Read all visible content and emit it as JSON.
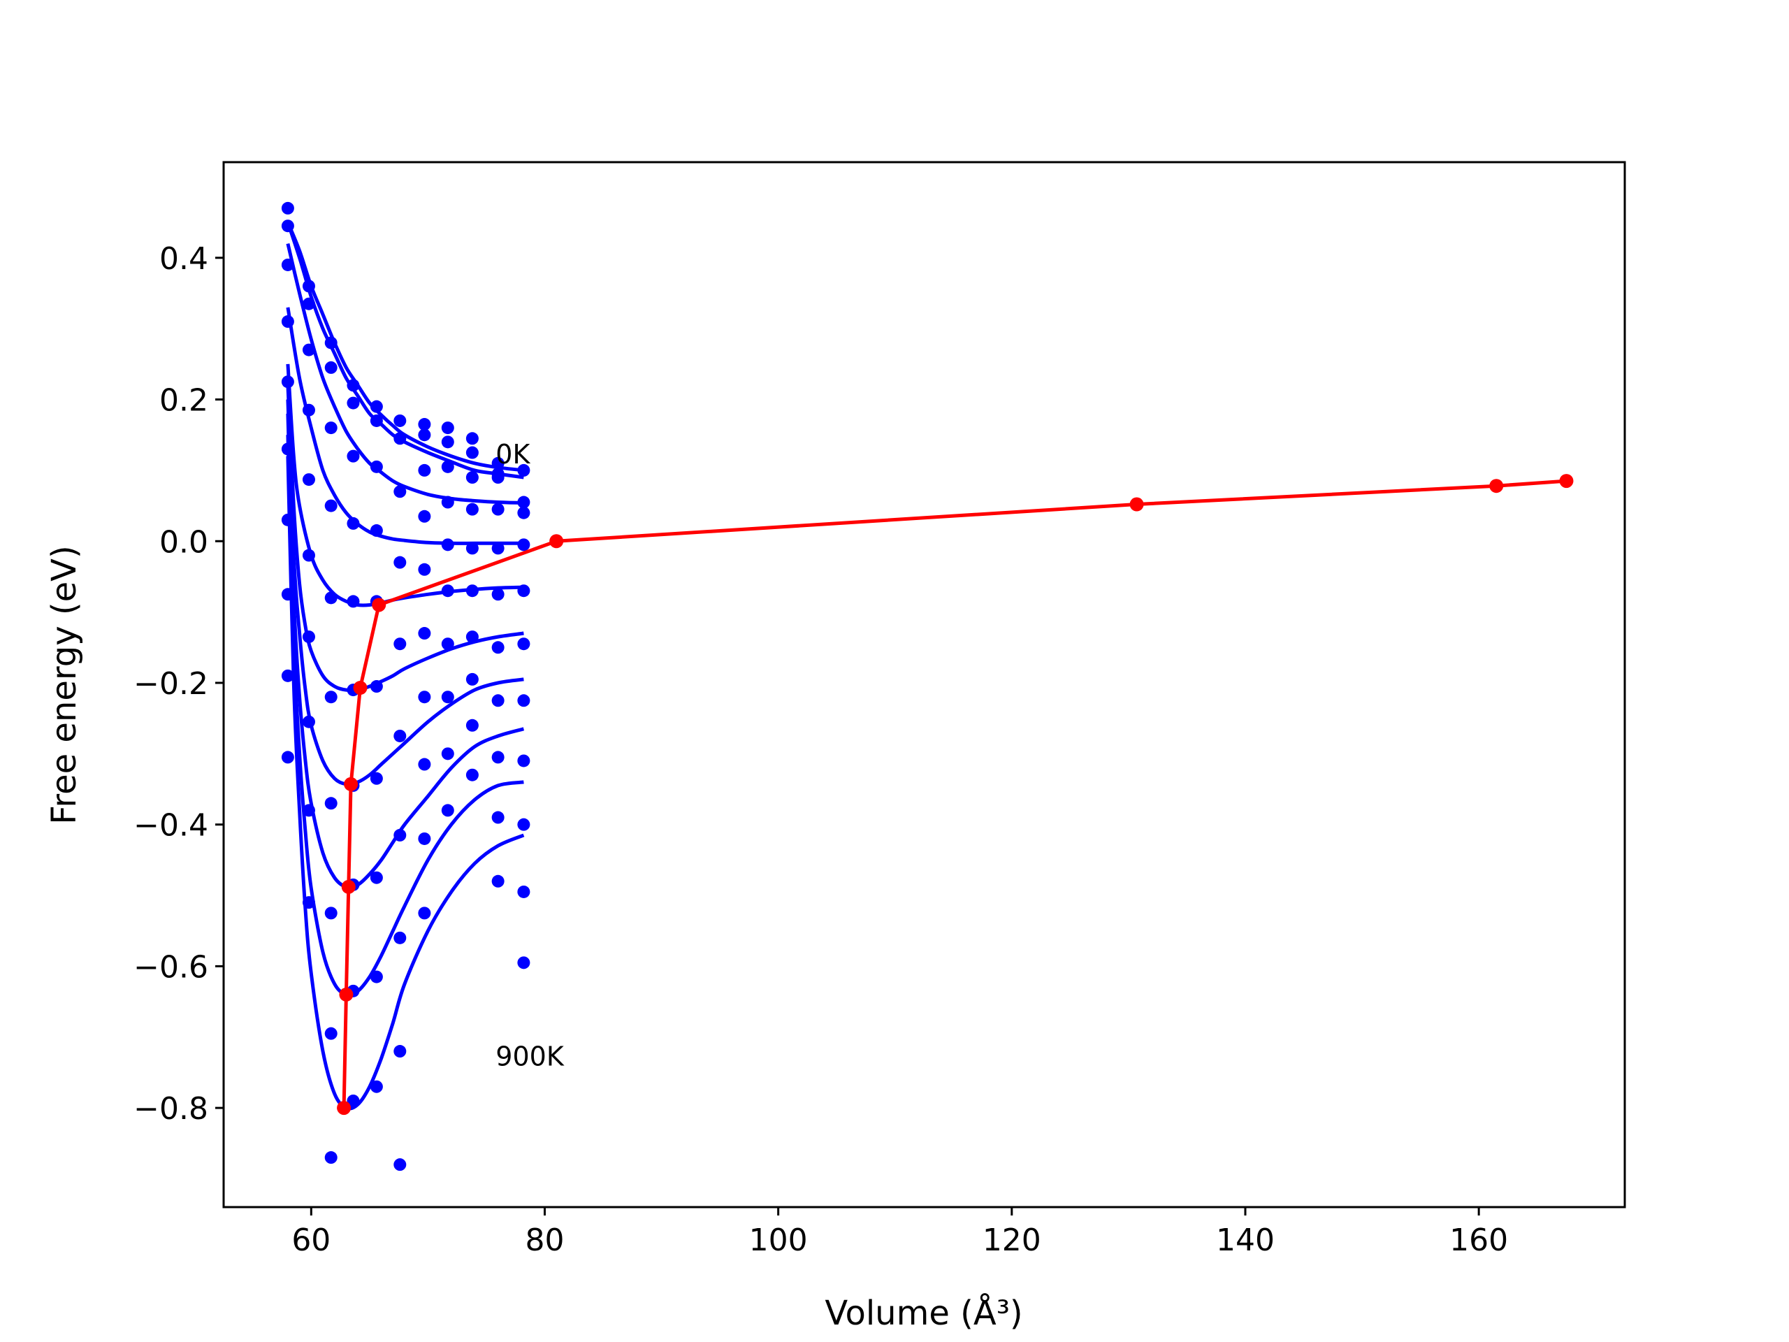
{
  "chart_data": {
    "type": "scatter",
    "title": "",
    "xlabel": "Volume (Å³)",
    "ylabel": "Free energy (eV)",
    "xlim": [
      52.5,
      172.5
    ],
    "ylim": [
      -0.94,
      0.535
    ],
    "xticks": [
      {
        "value": 60,
        "label": "60"
      },
      {
        "value": 80,
        "label": "80"
      },
      {
        "value": 100,
        "label": "100"
      },
      {
        "value": 120,
        "label": "120"
      },
      {
        "value": 140,
        "label": "140"
      },
      {
        "value": 160,
        "label": "160"
      }
    ],
    "yticks": [
      {
        "value": 0.4,
        "label": "0.4"
      },
      {
        "value": 0.2,
        "label": "0.2"
      },
      {
        "value": 0.0,
        "label": "0.0"
      },
      {
        "value": -0.2,
        "label": "−0.2"
      },
      {
        "value": -0.4,
        "label": "−0.4"
      },
      {
        "value": -0.6,
        "label": "−0.6"
      },
      {
        "value": -0.8,
        "label": "−0.8"
      }
    ],
    "grid": false,
    "legend": "none",
    "colors": {
      "fits": "#0000ff",
      "points": "#0000ff",
      "minima": "#ff0000"
    },
    "annotations": [
      {
        "text": "0K",
        "x": 75.8,
        "y": 0.11
      },
      {
        "text": "900K",
        "x": 75.8,
        "y": -0.74
      }
    ],
    "fit_curves": [
      {
        "x": [
          58.0,
          59.0,
          60.0,
          61.0,
          62.0,
          63.0,
          64.0,
          65.0,
          66.0,
          67.0,
          68.0,
          70.0,
          72.0,
          74.0,
          76.0,
          78.2
        ],
        "y": [
          0.45,
          0.41,
          0.36,
          0.32,
          0.28,
          0.245,
          0.22,
          0.195,
          0.178,
          0.163,
          0.15,
          0.133,
          0.12,
          0.11,
          0.104,
          0.1
        ]
      },
      {
        "x": [
          58.0,
          59.0,
          60.0,
          61.0,
          62.0,
          63.0,
          64.0,
          65.0,
          66.0,
          67.0,
          68.0,
          70.0,
          72.0,
          74.0,
          76.0,
          78.2
        ],
        "y": [
          0.45,
          0.4,
          0.345,
          0.3,
          0.265,
          0.23,
          0.205,
          0.18,
          0.165,
          0.15,
          0.14,
          0.125,
          0.112,
          0.1,
          0.095,
          0.09
        ]
      },
      {
        "x": [
          58.0,
          59.0,
          60.0,
          61.0,
          62.0,
          63.0,
          64.0,
          65.0,
          66.0,
          67.0,
          68.0,
          70.0,
          72.0,
          74.0,
          76.0,
          78.2
        ],
        "y": [
          0.42,
          0.35,
          0.285,
          0.23,
          0.19,
          0.155,
          0.13,
          0.11,
          0.097,
          0.085,
          0.077,
          0.066,
          0.06,
          0.057,
          0.055,
          0.054
        ]
      },
      {
        "x": [
          58.0,
          59.0,
          60.0,
          61.0,
          62.0,
          63.0,
          64.0,
          65.0,
          66.0,
          67.0,
          68.0,
          70.0,
          72.0,
          74.0,
          76.0,
          78.2
        ],
        "y": [
          0.33,
          0.23,
          0.16,
          0.1,
          0.065,
          0.04,
          0.024,
          0.013,
          0.007,
          0.003,
          0.001,
          -0.002,
          -0.003,
          -0.003,
          -0.003,
          -0.003
        ]
      },
      {
        "x": [
          58.0,
          58.5,
          59.0,
          60.0,
          61.0,
          62.0,
          63.0,
          64.0,
          65.0,
          66.0,
          67.0,
          68.0,
          70.0,
          72.0,
          74.0,
          76.0,
          78.2
        ],
        "y": [
          0.25,
          0.12,
          0.05,
          -0.02,
          -0.055,
          -0.075,
          -0.085,
          -0.09,
          -0.09,
          -0.087,
          -0.083,
          -0.08,
          -0.075,
          -0.071,
          -0.068,
          -0.066,
          -0.065
        ]
      },
      {
        "x": [
          58.0,
          58.5,
          59.0,
          59.5,
          60.0,
          61.0,
          62.0,
          63.0,
          64.0,
          65.0,
          66.0,
          67.0,
          68.0,
          70.0,
          72.0,
          74.0,
          76.0,
          78.2
        ],
        "y": [
          0.22,
          0.05,
          -0.06,
          -0.12,
          -0.155,
          -0.19,
          -0.205,
          -0.21,
          -0.21,
          -0.205,
          -0.198,
          -0.19,
          -0.18,
          -0.165,
          -0.152,
          -0.142,
          -0.135,
          -0.13
        ]
      },
      {
        "x": [
          58.0,
          58.5,
          59.0,
          59.5,
          60.0,
          61.0,
          62.0,
          63.0,
          64.0,
          65.0,
          66.0,
          67.0,
          68.0,
          70.0,
          72.0,
          74.0,
          76.0,
          78.2
        ],
        "y": [
          0.2,
          -0.02,
          -0.13,
          -0.21,
          -0.26,
          -0.31,
          -0.335,
          -0.343,
          -0.34,
          -0.33,
          -0.315,
          -0.3,
          -0.285,
          -0.255,
          -0.23,
          -0.21,
          -0.2,
          -0.195
        ]
      },
      {
        "x": [
          58.0,
          58.5,
          59.0,
          59.5,
          60.0,
          61.0,
          62.0,
          63.0,
          64.0,
          65.0,
          66.0,
          67.0,
          68.0,
          70.0,
          72.0,
          74.0,
          76.0,
          78.2
        ],
        "y": [
          0.18,
          -0.08,
          -0.22,
          -0.31,
          -0.37,
          -0.44,
          -0.475,
          -0.488,
          -0.485,
          -0.47,
          -0.45,
          -0.425,
          -0.4,
          -0.36,
          -0.32,
          -0.29,
          -0.275,
          -0.265
        ]
      },
      {
        "x": [
          58.0,
          58.5,
          59.0,
          59.5,
          60.0,
          61.0,
          62.0,
          63.0,
          64.0,
          65.0,
          66.0,
          67.0,
          68.0,
          70.0,
          72.0,
          74.0,
          76.0,
          78.2
        ],
        "y": [
          0.15,
          -0.14,
          -0.3,
          -0.41,
          -0.49,
          -0.58,
          -0.625,
          -0.64,
          -0.635,
          -0.615,
          -0.585,
          -0.55,
          -0.515,
          -0.45,
          -0.4,
          -0.365,
          -0.345,
          -0.34
        ]
      },
      {
        "x": [
          58.0,
          58.5,
          59.0,
          59.5,
          60.0,
          61.0,
          62.0,
          63.0,
          64.0,
          65.0,
          66.0,
          67.0,
          68.0,
          70.0,
          72.0,
          74.0,
          76.0,
          78.2
        ],
        "y": [
          0.12,
          -0.2,
          -0.38,
          -0.52,
          -0.61,
          -0.72,
          -0.78,
          -0.8,
          -0.795,
          -0.77,
          -0.73,
          -0.68,
          -0.625,
          -0.55,
          -0.495,
          -0.455,
          -0.43,
          -0.415
        ]
      }
    ],
    "data_points": [
      {
        "x": 58.0,
        "y": 0.47
      },
      {
        "x": 58.0,
        "y": 0.445
      },
      {
        "x": 58.0,
        "y": 0.39
      },
      {
        "x": 58.0,
        "y": 0.31
      },
      {
        "x": 58.0,
        "y": 0.225
      },
      {
        "x": 58.0,
        "y": 0.13
      },
      {
        "x": 58.0,
        "y": 0.03
      },
      {
        "x": 58.0,
        "y": -0.075
      },
      {
        "x": 58.0,
        "y": -0.19
      },
      {
        "x": 58.0,
        "y": -0.305
      },
      {
        "x": 59.8,
        "y": 0.36
      },
      {
        "x": 59.8,
        "y": 0.335
      },
      {
        "x": 59.8,
        "y": 0.27
      },
      {
        "x": 59.8,
        "y": 0.185
      },
      {
        "x": 59.8,
        "y": 0.087
      },
      {
        "x": 59.8,
        "y": -0.02
      },
      {
        "x": 59.8,
        "y": -0.135
      },
      {
        "x": 59.8,
        "y": -0.255
      },
      {
        "x": 59.8,
        "y": -0.38
      },
      {
        "x": 59.8,
        "y": -0.51
      },
      {
        "x": 61.7,
        "y": 0.28
      },
      {
        "x": 61.7,
        "y": 0.245
      },
      {
        "x": 61.7,
        "y": 0.16
      },
      {
        "x": 61.7,
        "y": 0.05
      },
      {
        "x": 61.7,
        "y": -0.08
      },
      {
        "x": 61.7,
        "y": -0.22
      },
      {
        "x": 61.7,
        "y": -0.37
      },
      {
        "x": 61.7,
        "y": -0.525
      },
      {
        "x": 61.7,
        "y": -0.695
      },
      {
        "x": 61.7,
        "y": -0.87
      },
      {
        "x": 63.6,
        "y": 0.22
      },
      {
        "x": 63.6,
        "y": 0.195
      },
      {
        "x": 63.6,
        "y": 0.12
      },
      {
        "x": 63.6,
        "y": 0.025
      },
      {
        "x": 63.6,
        "y": -0.085
      },
      {
        "x": 63.6,
        "y": -0.21
      },
      {
        "x": 63.6,
        "y": -0.345
      },
      {
        "x": 63.6,
        "y": -0.485
      },
      {
        "x": 63.6,
        "y": -0.635
      },
      {
        "x": 63.6,
        "y": -0.79
      },
      {
        "x": 65.6,
        "y": 0.19
      },
      {
        "x": 65.6,
        "y": 0.17
      },
      {
        "x": 65.6,
        "y": 0.105
      },
      {
        "x": 65.6,
        "y": 0.015
      },
      {
        "x": 65.6,
        "y": -0.085
      },
      {
        "x": 65.6,
        "y": -0.205
      },
      {
        "x": 65.6,
        "y": -0.335
      },
      {
        "x": 65.6,
        "y": -0.475
      },
      {
        "x": 65.6,
        "y": -0.615
      },
      {
        "x": 65.6,
        "y": -0.77
      },
      {
        "x": 67.6,
        "y": 0.17
      },
      {
        "x": 67.6,
        "y": 0.145
      },
      {
        "x": 67.6,
        "y": 0.07
      },
      {
        "x": 67.6,
        "y": -0.03
      },
      {
        "x": 67.6,
        "y": -0.145
      },
      {
        "x": 67.6,
        "y": -0.275
      },
      {
        "x": 67.6,
        "y": -0.415
      },
      {
        "x": 67.6,
        "y": -0.56
      },
      {
        "x": 67.6,
        "y": -0.72
      },
      {
        "x": 67.6,
        "y": -0.88
      },
      {
        "x": 69.7,
        "y": 0.165
      },
      {
        "x": 69.7,
        "y": 0.15
      },
      {
        "x": 69.7,
        "y": 0.1
      },
      {
        "x": 69.7,
        "y": 0.035
      },
      {
        "x": 69.7,
        "y": -0.04
      },
      {
        "x": 69.7,
        "y": -0.13
      },
      {
        "x": 69.7,
        "y": -0.22
      },
      {
        "x": 69.7,
        "y": -0.315
      },
      {
        "x": 69.7,
        "y": -0.42
      },
      {
        "x": 69.7,
        "y": -0.525
      },
      {
        "x": 71.7,
        "y": 0.16
      },
      {
        "x": 71.7,
        "y": 0.14
      },
      {
        "x": 71.7,
        "y": 0.105
      },
      {
        "x": 71.7,
        "y": 0.055
      },
      {
        "x": 71.7,
        "y": -0.005
      },
      {
        "x": 71.7,
        "y": -0.07
      },
      {
        "x": 71.7,
        "y": -0.145
      },
      {
        "x": 71.7,
        "y": -0.22
      },
      {
        "x": 71.7,
        "y": -0.3
      },
      {
        "x": 71.7,
        "y": -0.38
      },
      {
        "x": 73.8,
        "y": 0.145
      },
      {
        "x": 73.8,
        "y": 0.125
      },
      {
        "x": 73.8,
        "y": 0.09
      },
      {
        "x": 73.8,
        "y": 0.045
      },
      {
        "x": 73.8,
        "y": -0.01
      },
      {
        "x": 73.8,
        "y": -0.07
      },
      {
        "x": 73.8,
        "y": -0.135
      },
      {
        "x": 73.8,
        "y": -0.195
      },
      {
        "x": 73.8,
        "y": -0.26
      },
      {
        "x": 73.8,
        "y": -0.33
      },
      {
        "x": 76.0,
        "y": 0.11
      },
      {
        "x": 76.0,
        "y": 0.095
      },
      {
        "x": 76.0,
        "y": 0.09
      },
      {
        "x": 76.0,
        "y": 0.045
      },
      {
        "x": 76.0,
        "y": -0.01
      },
      {
        "x": 76.0,
        "y": -0.075
      },
      {
        "x": 76.0,
        "y": -0.15
      },
      {
        "x": 76.0,
        "y": -0.225
      },
      {
        "x": 76.0,
        "y": -0.305
      },
      {
        "x": 76.0,
        "y": -0.39
      },
      {
        "x": 76.0,
        "y": -0.48
      },
      {
        "x": 78.2,
        "y": 0.1
      },
      {
        "x": 78.2,
        "y": 0.055
      },
      {
        "x": 78.2,
        "y": 0.04
      },
      {
        "x": 78.2,
        "y": -0.005
      },
      {
        "x": 78.2,
        "y": -0.07
      },
      {
        "x": 78.2,
        "y": -0.145
      },
      {
        "x": 78.2,
        "y": -0.225
      },
      {
        "x": 78.2,
        "y": -0.31
      },
      {
        "x": 78.2,
        "y": -0.4
      },
      {
        "x": 78.2,
        "y": -0.495
      },
      {
        "x": 78.2,
        "y": -0.595
      }
    ],
    "minima_path": {
      "x": [
        62.8,
        63.0,
        63.2,
        63.4,
        64.2,
        65.8,
        81.0,
        130.7,
        161.5,
        167.5
      ],
      "y": [
        -0.8,
        -0.64,
        -0.488,
        -0.343,
        -0.207,
        -0.09,
        0.0,
        0.052,
        0.078,
        0.085
      ]
    }
  }
}
